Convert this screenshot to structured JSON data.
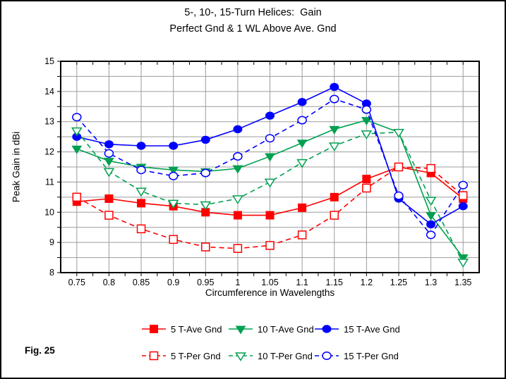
{
  "figure_label": "Fig. 25",
  "chart_data": {
    "type": "line",
    "title": "5-, 10-, 15-Turn Helices:  Gain",
    "subtitle": "Perfect Gnd & 1 WL Above Ave. Gnd",
    "xlabel": "Circumference in Wavelengths",
    "ylabel": "Peak Gain in dBi",
    "xlim": [
      0.725,
      1.375
    ],
    "ylim": [
      8,
      15
    ],
    "grid": true,
    "grid_color": "#9C9C9C",
    "x_grid_step": 0.05,
    "y_grid_step": 0.5,
    "x_minor_tick_step": 0.025,
    "y_tick_step": 0.5,
    "x": [
      0.75,
      0.8,
      0.85,
      0.9,
      0.95,
      1,
      1.05,
      1.1,
      1.15,
      1.2,
      1.25,
      1.3,
      1.35
    ],
    "x_tick_labels": [
      "0.75",
      "0.8",
      "0.85",
      "0.9",
      "0.95",
      "1",
      "1.05",
      "1.1",
      "1.15",
      "1.2",
      "1.25",
      "1.3",
      "1.35"
    ],
    "y_ticks": [
      8,
      9,
      10,
      11,
      12,
      13,
      14,
      15
    ],
    "y_tick_labels": [
      "8",
      "9",
      "10",
      "11",
      "12",
      "13",
      "14",
      "15"
    ],
    "legend_position": "bottom",
    "series": [
      {
        "name": "5 T-Ave Gnd",
        "color": "#FF0000",
        "marker": "square",
        "marker_fill": "filled",
        "line_style": "solid",
        "values": [
          10.35,
          10.45,
          10.3,
          10.2,
          10.0,
          9.9,
          9.9,
          10.15,
          10.5,
          11.1,
          11.5,
          11.3,
          10.45
        ]
      },
      {
        "name": "10 T-Ave Gnd",
        "color": "#00A050",
        "marker": "triangle-down",
        "marker_fill": "filled",
        "line_style": "solid",
        "values": [
          12.1,
          11.7,
          11.5,
          11.4,
          11.35,
          11.45,
          11.85,
          12.3,
          12.75,
          13.05,
          12.65,
          9.9,
          8.5
        ]
      },
      {
        "name": "15 T-Ave Gnd",
        "color": "#0000FF",
        "marker": "circle",
        "marker_fill": "filled",
        "line_style": "solid",
        "values": [
          12.5,
          12.25,
          12.2,
          12.2,
          12.4,
          12.75,
          13.2,
          13.65,
          14.15,
          13.6,
          10.45,
          9.6,
          10.2
        ]
      },
      {
        "name": "5 T-Per Gnd",
        "color": "#FF0000",
        "marker": "square",
        "marker_fill": "open",
        "line_style": "dashed",
        "values": [
          10.5,
          9.9,
          9.45,
          9.1,
          8.85,
          8.8,
          8.9,
          9.25,
          9.9,
          10.8,
          11.5,
          11.45,
          10.55
        ]
      },
      {
        "name": "10 T-Per Gnd",
        "color": "#00A050",
        "marker": "triangle-down",
        "marker_fill": "open",
        "line_style": "dashed",
        "values": [
          12.7,
          11.35,
          10.7,
          10.3,
          10.25,
          10.45,
          11.0,
          11.65,
          12.2,
          12.6,
          12.65,
          10.4,
          8.35
        ]
      },
      {
        "name": "15 T-Per Gnd",
        "color": "#0000FF",
        "marker": "circle",
        "marker_fill": "open",
        "line_style": "dashed",
        "values": [
          13.15,
          11.95,
          11.4,
          11.2,
          11.3,
          11.85,
          12.45,
          13.05,
          13.75,
          13.4,
          10.55,
          9.25,
          10.9
        ]
      }
    ]
  }
}
